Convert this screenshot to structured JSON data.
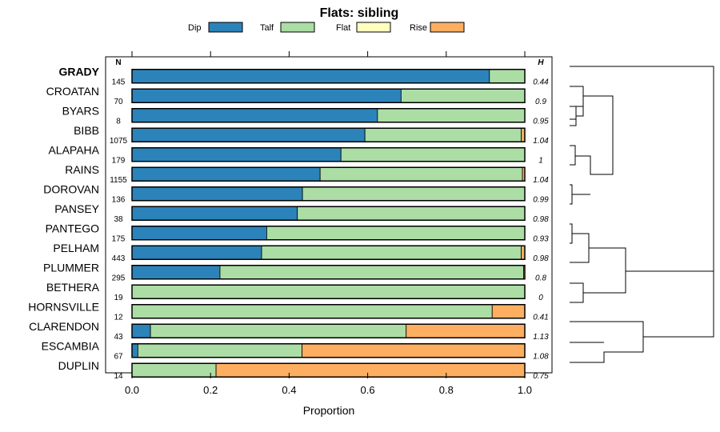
{
  "chart_data": {
    "type": "bar",
    "orientation": "horizontal",
    "stacked": true,
    "title": "Flats: sibling",
    "xlabel": "Proportion",
    "xlim": [
      0,
      1
    ],
    "xticks": [
      "0.0",
      "0.2",
      "0.4",
      "0.6",
      "0.8",
      "1.0"
    ],
    "n_header": "N",
    "h_header": "H",
    "highlight_category": "GRADY",
    "categories": [
      "GRADY",
      "CROATAN",
      "BYARS",
      "BIBB",
      "ALAPAHA",
      "RAINS",
      "DOROVAN",
      "PANSEY",
      "PANTEGO",
      "PELHAM",
      "PLUMMER",
      "BETHERA",
      "HORNSVILLE",
      "CLARENDON",
      "ESCAMBIA",
      "DUPLIN"
    ],
    "n": [
      "145",
      "70",
      "8",
      "1075",
      "179",
      "1155",
      "136",
      "38",
      "175",
      "443",
      "295",
      "19",
      "12",
      "43",
      "67",
      "14"
    ],
    "h": [
      "0.44",
      "0.9",
      "0.95",
      "1.04",
      "1",
      "1.04",
      "0.99",
      "0.98",
      "0.93",
      "0.98",
      "0.8",
      "0",
      "0.41",
      "1.13",
      "1.08",
      "0.75"
    ],
    "series": [
      {
        "name": "Dip",
        "color": "#2b83ba",
        "values": [
          0.91,
          0.685,
          0.625,
          0.593,
          0.532,
          0.479,
          0.434,
          0.421,
          0.343,
          0.33,
          0.224,
          0.0,
          0.0,
          0.047,
          0.015,
          0.0
        ]
      },
      {
        "name": "Talf",
        "color": "#abdda4",
        "values": [
          0.09,
          0.315,
          0.375,
          0.398,
          0.468,
          0.515,
          0.566,
          0.579,
          0.657,
          0.661,
          0.773,
          1.0,
          0.917,
          0.651,
          0.418,
          0.214
        ]
      },
      {
        "name": "Flat",
        "color": "#ffffbf",
        "values": [
          0,
          0,
          0,
          0,
          0,
          0,
          0,
          0,
          0,
          0,
          0,
          0,
          0,
          0,
          0,
          0
        ]
      },
      {
        "name": "Rise",
        "color": "#fdae61",
        "values": [
          0,
          0,
          0,
          0.009,
          0,
          0.006,
          0,
          0,
          0,
          0.009,
          0.003,
          0,
          0.083,
          0.302,
          0.567,
          0.786
        ]
      }
    ]
  }
}
